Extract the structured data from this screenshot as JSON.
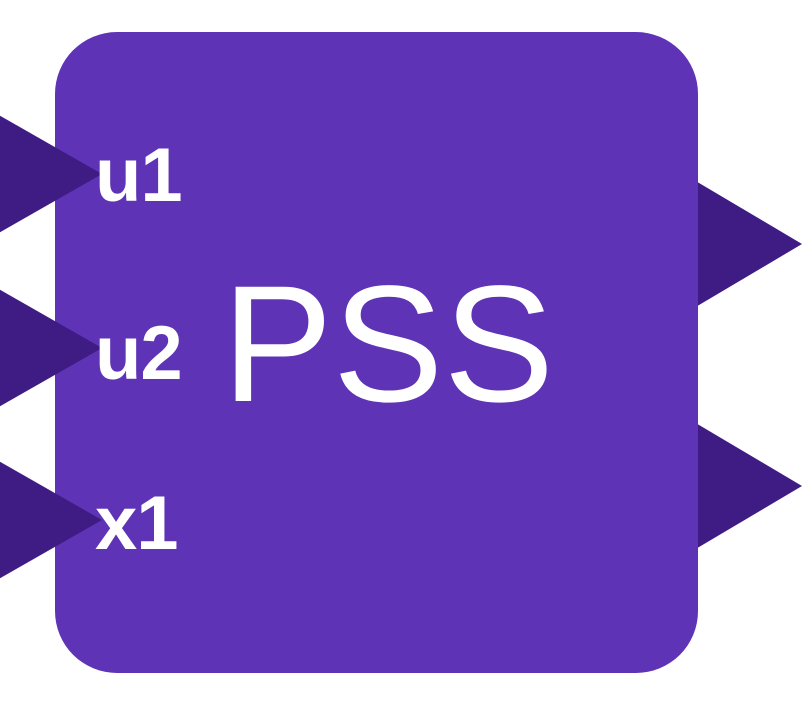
{
  "block": {
    "title": "PSS",
    "inputs": [
      {
        "label": "u1"
      },
      {
        "label": "u2"
      },
      {
        "label": "x1"
      }
    ],
    "output_count": 2
  },
  "colors": {
    "block_fill": "#5e33b6",
    "port_fill": "#3e1c84",
    "label_text": "#ffffff",
    "background": "#ffffff"
  }
}
